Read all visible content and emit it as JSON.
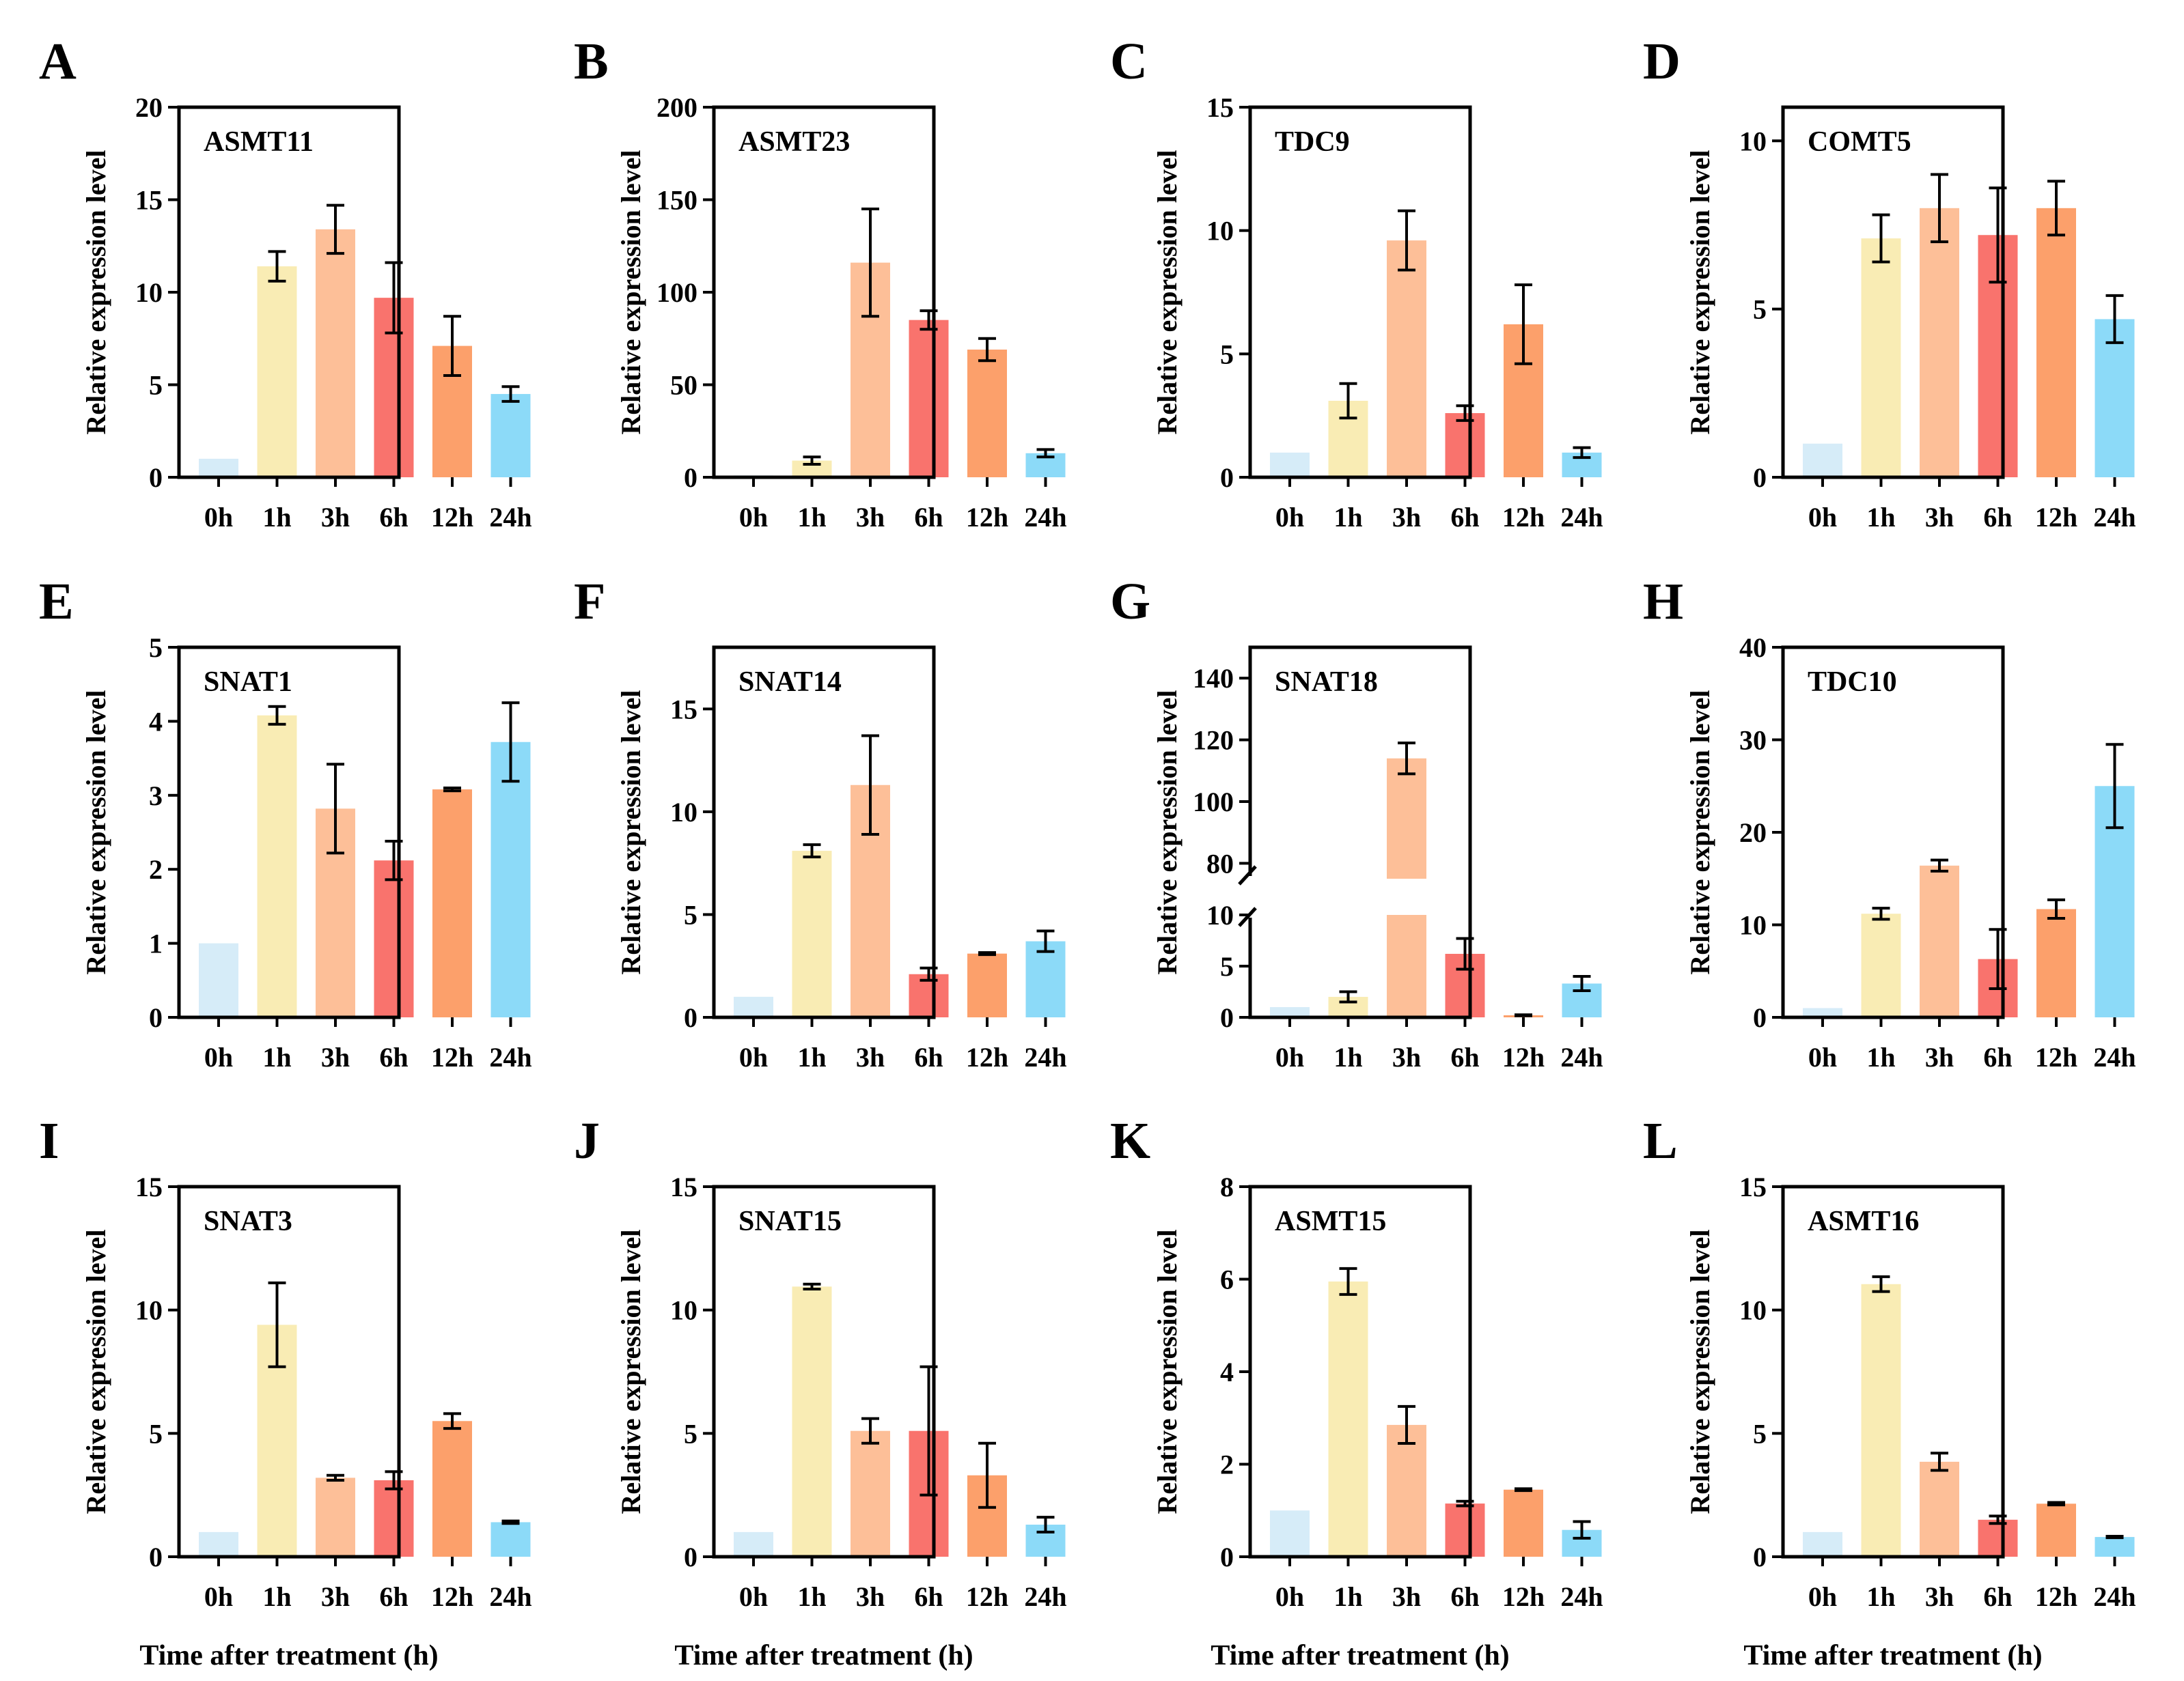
{
  "figure": {
    "xlabel": "Time after treatment (h)",
    "ylabel": "Relative expression level",
    "colors": {
      "0h": "#d6ecf8",
      "1h": "#f9ecb4",
      "3h": "#fdbf98",
      "6h": "#f9736d",
      "12h": "#fca06b",
      "24h": "#8cdaf8"
    }
  },
  "chart_data": [
    {
      "panel": "A",
      "gene": "ASMT11",
      "type": "bar",
      "categories": [
        "0h",
        "1h",
        "3h",
        "6h",
        "12h",
        "24h"
      ],
      "values": [
        1.0,
        11.4,
        13.4,
        9.7,
        7.1,
        4.5
      ],
      "errors": [
        0,
        0.8,
        1.3,
        1.9,
        1.6,
        0.4
      ],
      "ylim": [
        0,
        20
      ],
      "yticks": [
        0,
        5,
        10,
        15,
        20
      ]
    },
    {
      "panel": "B",
      "gene": "ASMT23",
      "type": "bar",
      "categories": [
        "0h",
        "1h",
        "3h",
        "6h",
        "12h",
        "24h"
      ],
      "values": [
        1.0,
        9,
        116,
        85,
        69,
        13
      ],
      "errors": [
        0,
        2,
        29,
        5,
        6,
        2
      ],
      "ylim": [
        0,
        200
      ],
      "yticks": [
        0,
        50,
        100,
        150,
        200
      ]
    },
    {
      "panel": "C",
      "gene": "TDC9",
      "type": "bar",
      "categories": [
        "0h",
        "1h",
        "3h",
        "6h",
        "12h",
        "24h"
      ],
      "values": [
        1.0,
        3.1,
        9.6,
        2.6,
        6.2,
        1.0
      ],
      "errors": [
        0,
        0.7,
        1.2,
        0.3,
        1.6,
        0.2
      ],
      "ylim": [
        0,
        15
      ],
      "yticks": [
        0,
        5,
        10,
        15
      ]
    },
    {
      "panel": "D",
      "gene": "COMT5",
      "type": "bar",
      "categories": [
        "0h",
        "1h",
        "3h",
        "6h",
        "12h",
        "24h"
      ],
      "values": [
        1.0,
        7.1,
        8.0,
        7.2,
        8.0,
        4.7
      ],
      "errors": [
        0,
        0.7,
        1.0,
        1.4,
        0.8,
        0.7
      ],
      "ylim": [
        0,
        11
      ],
      "yticks": [
        0,
        5,
        10
      ]
    },
    {
      "panel": "E",
      "gene": "SNAT1",
      "type": "bar",
      "categories": [
        "0h",
        "1h",
        "3h",
        "6h",
        "12h",
        "24h"
      ],
      "values": [
        1.0,
        4.08,
        2.82,
        2.12,
        3.08,
        3.72
      ],
      "errors": [
        0,
        0.12,
        0.6,
        0.26,
        0.02,
        0.53
      ],
      "ylim": [
        0,
        5
      ],
      "yticks": [
        0,
        1,
        2,
        3,
        4,
        5
      ]
    },
    {
      "panel": "F",
      "gene": "SNAT14",
      "type": "bar",
      "categories": [
        "0h",
        "1h",
        "3h",
        "6h",
        "12h",
        "24h"
      ],
      "values": [
        1.0,
        8.1,
        11.3,
        2.1,
        3.1,
        3.7
      ],
      "errors": [
        0,
        0.3,
        2.4,
        0.3,
        0.05,
        0.5
      ],
      "ylim": [
        0,
        18
      ],
      "yticks": [
        0,
        5,
        10,
        15
      ]
    },
    {
      "panel": "G",
      "gene": "SNAT18",
      "type": "bar",
      "broken_axis": true,
      "categories": [
        "0h",
        "1h",
        "3h",
        "6h",
        "12h",
        "24h"
      ],
      "values": [
        1.0,
        2.0,
        114,
        6.2,
        0.2,
        3.3
      ],
      "errors": [
        0,
        0.5,
        5,
        1.5,
        0.05,
        0.7
      ],
      "lower_ylim": [
        0,
        10
      ],
      "upper_ylim": [
        75,
        150
      ],
      "yticks_lower": [
        0,
        5,
        10
      ],
      "yticks_upper": [
        80,
        100,
        120,
        140
      ]
    },
    {
      "panel": "H",
      "gene": "TDC10",
      "type": "bar",
      "categories": [
        "0h",
        "1h",
        "3h",
        "6h",
        "12h",
        "24h"
      ],
      "values": [
        1.0,
        11.2,
        16.4,
        6.3,
        11.7,
        25.0
      ],
      "errors": [
        0,
        0.6,
        0.6,
        3.2,
        1.0,
        4.5
      ],
      "ylim": [
        0,
        40
      ],
      "yticks": [
        0,
        10,
        20,
        30,
        40
      ]
    },
    {
      "panel": "I",
      "gene": "SNAT3",
      "type": "bar",
      "categories": [
        "0h",
        "1h",
        "3h",
        "6h",
        "12h",
        "24h"
      ],
      "values": [
        1.0,
        9.4,
        3.2,
        3.1,
        5.5,
        1.4
      ],
      "errors": [
        0,
        1.7,
        0.1,
        0.35,
        0.3,
        0.05
      ],
      "ylim": [
        0,
        15
      ],
      "yticks": [
        0,
        5,
        10,
        15
      ]
    },
    {
      "panel": "J",
      "gene": "SNAT15",
      "type": "bar",
      "categories": [
        "0h",
        "1h",
        "3h",
        "6h",
        "12h",
        "24h"
      ],
      "values": [
        1.0,
        10.95,
        5.1,
        5.1,
        3.3,
        1.3
      ],
      "errors": [
        0,
        0.1,
        0.5,
        2.6,
        1.3,
        0.3
      ],
      "ylim": [
        0,
        15
      ],
      "yticks": [
        0,
        5,
        10,
        15
      ]
    },
    {
      "panel": "K",
      "gene": "ASMT15",
      "type": "bar",
      "categories": [
        "0h",
        "1h",
        "3h",
        "6h",
        "12h",
        "24h"
      ],
      "values": [
        1.0,
        5.95,
        2.85,
        1.15,
        1.45,
        0.58
      ],
      "errors": [
        0,
        0.28,
        0.4,
        0.05,
        0.02,
        0.18
      ],
      "ylim": [
        0,
        8
      ],
      "yticks": [
        0,
        2,
        4,
        6,
        8
      ]
    },
    {
      "panel": "L",
      "gene": "ASMT16",
      "type": "bar",
      "categories": [
        "0h",
        "1h",
        "3h",
        "6h",
        "12h",
        "24h"
      ],
      "values": [
        1.0,
        11.05,
        3.85,
        1.5,
        2.15,
        0.8
      ],
      "errors": [
        0,
        0.3,
        0.35,
        0.15,
        0.05,
        0.03
      ],
      "ylim": [
        0,
        15
      ],
      "yticks": [
        0,
        5,
        10,
        15
      ]
    }
  ]
}
